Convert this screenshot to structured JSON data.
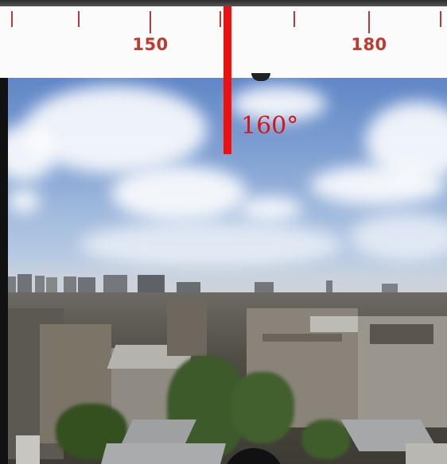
{
  "compass": {
    "ticks": [
      {
        "label": "",
        "major": false
      },
      {
        "label": "",
        "major": false
      },
      {
        "label": "150",
        "major": true
      },
      {
        "label": "",
        "major": false
      },
      {
        "label": "",
        "major": false
      },
      {
        "label": "180",
        "major": true
      },
      {
        "label": "",
        "major": false
      }
    ],
    "tick_color": "#b83a38",
    "label_color": "#c0392b"
  },
  "heading": {
    "value_label": "160°",
    "indicator_color": "#ee0f0f"
  },
  "photo": {
    "description_icon": "panorama-photo"
  }
}
